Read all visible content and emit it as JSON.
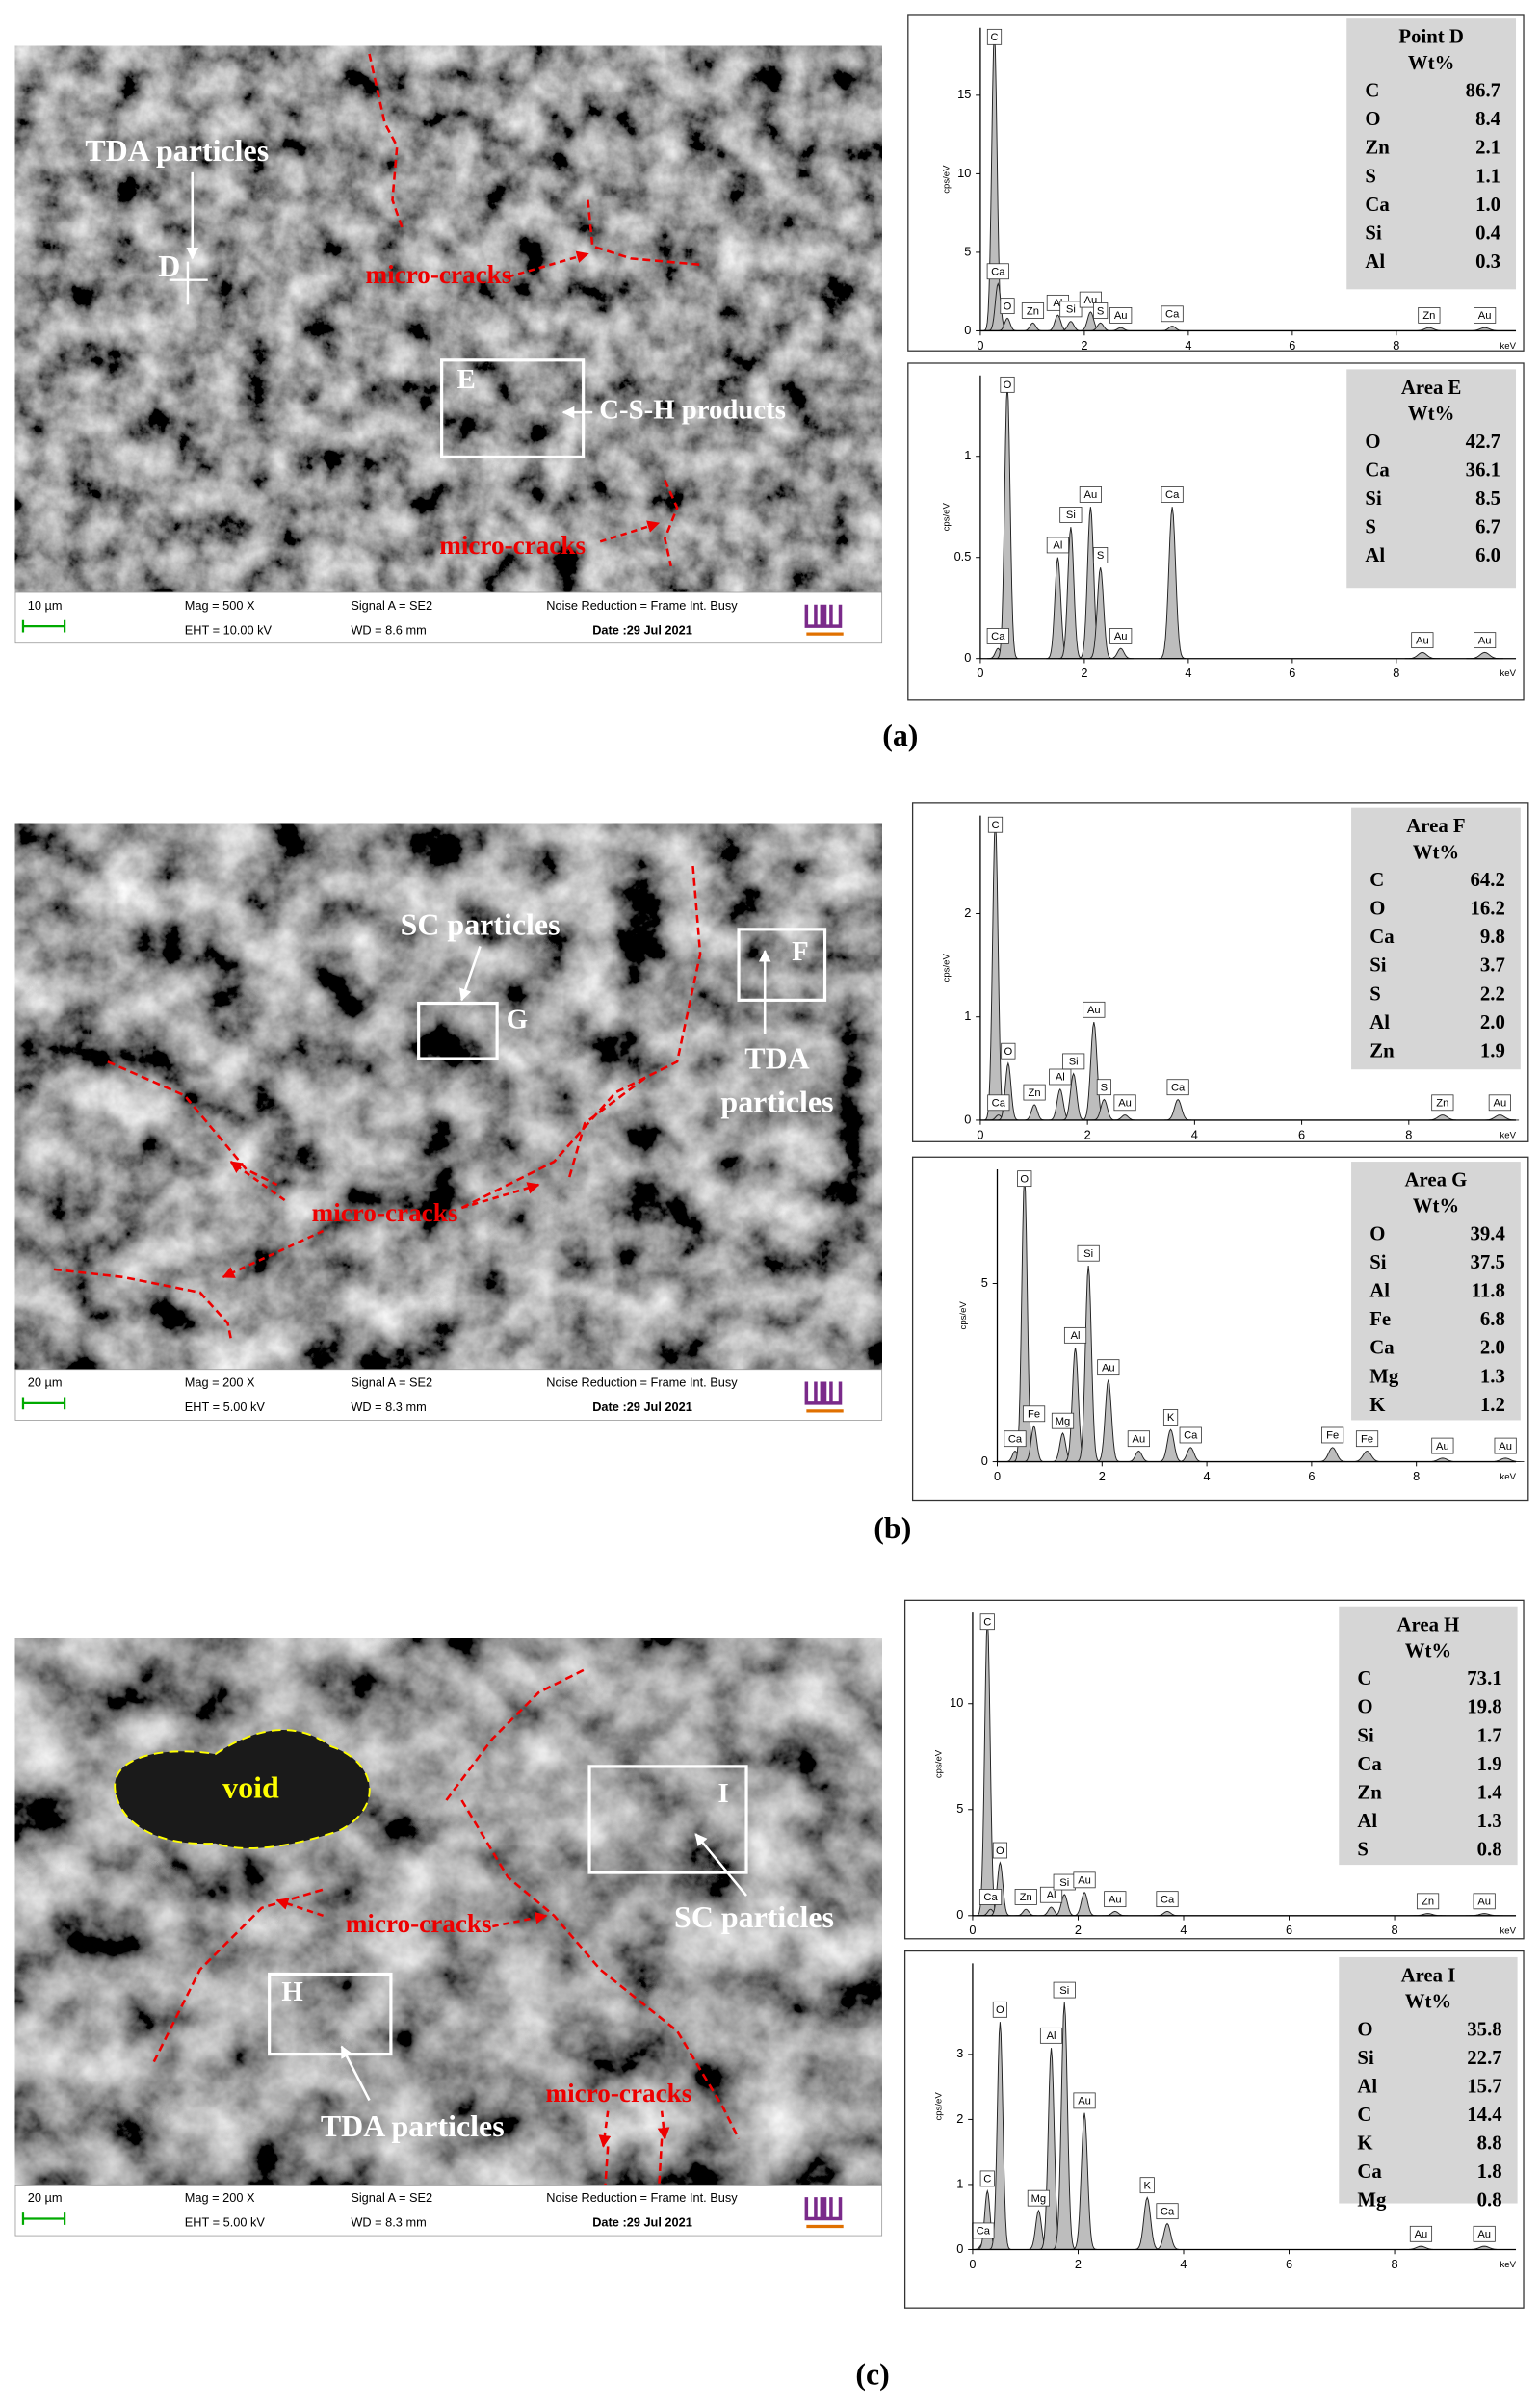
{
  "panels": [
    {
      "caption": "(a)",
      "sem": {
        "labels": [
          "TDA particles",
          "D",
          "micro-cracks",
          "E",
          "C-S-H products",
          "micro-cracks"
        ],
        "info": {
          "scale": "10 µm",
          "mag": "Mag =    500 X",
          "eht": "EHT = 10.00 kV",
          "signal": "Signal A = SE2",
          "wd": "WD = 8.6 mm",
          "noise": "Noise Reduction = Frame Int. Busy",
          "date": "Date :29 Jul 2021"
        }
      },
      "spectra": [
        {
          "table_title": "Point D",
          "table_unit": "Wt%",
          "rows": [
            [
              "C",
              "86.7"
            ],
            [
              "O",
              "8.4"
            ],
            [
              "Zn",
              "2.1"
            ],
            [
              "S",
              "1.1"
            ],
            [
              "Ca",
              "1.0"
            ],
            [
              "Si",
              "0.4"
            ],
            [
              "Al",
              "0.3"
            ]
          ],
          "y_axis_label": "cps/eV",
          "x_unit": "keV",
          "xlim": [
            0,
            10.3
          ],
          "ylim": [
            0,
            19.3
          ],
          "xticks": [
            0,
            2,
            4,
            6,
            8
          ],
          "yticks": [
            0,
            5,
            10,
            15
          ],
          "peaks": [
            {
              "label": "C",
              "kev": 0.27,
              "height": 19
            },
            {
              "label": "Ca",
              "kev": 0.34,
              "height": 3
            },
            {
              "label": "O",
              "kev": 0.52,
              "height": 0.8
            },
            {
              "label": "Zn",
              "kev": 1.01,
              "height": 0.5
            },
            {
              "label": "Al",
              "kev": 1.49,
              "height": 1
            },
            {
              "label": "Si",
              "kev": 1.74,
              "height": 0.6
            },
            {
              "label": "Au",
              "kev": 2.12,
              "height": 1.2
            },
            {
              "label": "S",
              "kev": 2.31,
              "height": 0.5
            },
            {
              "label": "Au",
              "kev": 2.7,
              "height": 0.2
            },
            {
              "label": "Ca",
              "kev": 3.69,
              "height": 0.3
            },
            {
              "label": "Zn",
              "kev": 8.63,
              "height": 0.2
            },
            {
              "label": "Au",
              "kev": 9.7,
              "height": 0.2
            }
          ]
        },
        {
          "table_title": "Area E",
          "table_unit": "Wt%",
          "rows": [
            [
              "O",
              "42.7"
            ],
            [
              "Ca",
              "36.1"
            ],
            [
              "Si",
              "8.5"
            ],
            [
              "S",
              "6.7"
            ],
            [
              "Al",
              "6.0"
            ]
          ],
          "y_axis_label": "cps/eV",
          "x_unit": "keV",
          "xlim": [
            0,
            10.3
          ],
          "ylim": [
            0,
            1.4
          ],
          "xticks": [
            0,
            2,
            4,
            6,
            8
          ],
          "yticks": [
            0,
            0.5,
            1
          ],
          "peaks": [
            {
              "label": "Ca",
              "kev": 0.34,
              "height": 0.05
            },
            {
              "label": "O",
              "kev": 0.52,
              "height": 1.35
            },
            {
              "label": "Al",
              "kev": 1.49,
              "height": 0.5
            },
            {
              "label": "Si",
              "kev": 1.74,
              "height": 0.65
            },
            {
              "label": "Au",
              "kev": 2.12,
              "height": 0.75
            },
            {
              "label": "S",
              "kev": 2.31,
              "height": 0.45
            },
            {
              "label": "Au",
              "kev": 2.7,
              "height": 0.05
            },
            {
              "label": "Ca",
              "kev": 3.69,
              "height": 0.75
            },
            {
              "label": "Au",
              "kev": 8.5,
              "height": 0.03
            },
            {
              "label": "Au",
              "kev": 9.7,
              "height": 0.03
            }
          ]
        }
      ]
    },
    {
      "caption": "(b)",
      "sem": {
        "labels": [
          "SC particles",
          "G",
          "F",
          "TDA",
          "particles",
          "micro-cracks"
        ],
        "info": {
          "scale": "20 µm",
          "mag": "Mag =    200 X",
          "eht": "EHT = 5.00 kV",
          "signal": "Signal A = SE2",
          "wd": "WD = 8.3 mm",
          "noise": "Noise Reduction = Frame Int. Busy",
          "date": "Date :29 Jul 2021"
        }
      },
      "spectra": [
        {
          "table_title": "Area F",
          "table_unit": "Wt%",
          "rows": [
            [
              "C",
              "64.2"
            ],
            [
              "O",
              "16.2"
            ],
            [
              "Ca",
              "9.8"
            ],
            [
              "Si",
              "3.7"
            ],
            [
              "S",
              "2.2"
            ],
            [
              "Al",
              "2.0"
            ],
            [
              "Zn",
              "1.9"
            ]
          ],
          "y_axis_label": "cps/eV",
          "x_unit": "keV",
          "xlim": [
            0,
            10
          ],
          "ylim": [
            0,
            2.95
          ],
          "xticks": [
            0,
            2,
            4,
            6,
            8
          ],
          "yticks": [
            0,
            1,
            2
          ],
          "peaks": [
            {
              "label": "C",
              "kev": 0.28,
              "height": 2.9
            },
            {
              "label": "Ca",
              "kev": 0.34,
              "height": 0.05
            },
            {
              "label": "O",
              "kev": 0.52,
              "height": 0.55
            },
            {
              "label": "Zn",
              "kev": 1.01,
              "height": 0.15
            },
            {
              "label": "Al",
              "kev": 1.49,
              "height": 0.3
            },
            {
              "label": "Si",
              "kev": 1.74,
              "height": 0.45
            },
            {
              "label": "Au",
              "kev": 2.12,
              "height": 0.95
            },
            {
              "label": "S",
              "kev": 2.31,
              "height": 0.2
            },
            {
              "label": "Au",
              "kev": 2.7,
              "height": 0.05
            },
            {
              "label": "Ca",
              "kev": 3.69,
              "height": 0.2
            },
            {
              "label": "Zn",
              "kev": 8.63,
              "height": 0.05
            },
            {
              "label": "Au",
              "kev": 9.7,
              "height": 0.05
            }
          ]
        },
        {
          "table_title": "Area G",
          "table_unit": "Wt%",
          "rows": [
            [
              "O",
              "39.4"
            ],
            [
              "Si",
              "37.5"
            ],
            [
              "Al",
              "11.8"
            ],
            [
              "Fe",
              "6.8"
            ],
            [
              "Ca",
              "2.0"
            ],
            [
              "Mg",
              "1.3"
            ],
            [
              "K",
              "1.2"
            ]
          ],
          "y_axis_label": "cps/eV",
          "x_unit": "keV",
          "xlim": [
            0,
            9.9
          ],
          "ylim": [
            0,
            8.2
          ],
          "xticks": [
            0,
            2,
            4,
            6,
            8
          ],
          "yticks": [
            0,
            5
          ],
          "peaks": [
            {
              "label": "Ca",
              "kev": 0.34,
              "height": 0.3
            },
            {
              "label": "O",
              "kev": 0.52,
              "height": 8
            },
            {
              "label": "Fe",
              "kev": 0.7,
              "height": 1
            },
            {
              "label": "Mg",
              "kev": 1.25,
              "height": 0.8
            },
            {
              "label": "Al",
              "kev": 1.49,
              "height": 3.2
            },
            {
              "label": "Si",
              "kev": 1.74,
              "height": 5.5
            },
            {
              "label": "Au",
              "kev": 2.12,
              "height": 2.3
            },
            {
              "label": "Au",
              "kev": 2.7,
              "height": 0.3
            },
            {
              "label": "K",
              "kev": 3.31,
              "height": 0.9
            },
            {
              "label": "Ca",
              "kev": 3.69,
              "height": 0.4
            },
            {
              "label": "Fe",
              "kev": 6.4,
              "height": 0.4
            },
            {
              "label": "Fe",
              "kev": 7.06,
              "height": 0.3
            },
            {
              "label": "Au",
              "kev": 8.5,
              "height": 0.1
            },
            {
              "label": "Au",
              "kev": 9.7,
              "height": 0.1
            }
          ]
        }
      ]
    },
    {
      "caption": "(c)",
      "sem": {
        "labels": [
          "void",
          "I",
          "SC particles",
          "micro-cracks",
          "H",
          "TDA particles",
          "micro-cracks"
        ],
        "info": {
          "scale": "20 µm",
          "mag": "Mag =    200 X",
          "eht": "EHT = 5.00 kV",
          "signal": "Signal A = SE2",
          "wd": "WD = 8.3 mm",
          "noise": "Noise Reduction = Frame Int. Busy",
          "date": "Date :29 Jul 2021"
        }
      },
      "spectra": [
        {
          "table_title": "Area H",
          "table_unit": "Wt%",
          "rows": [
            [
              "C",
              "73.1"
            ],
            [
              "O",
              "19.8"
            ],
            [
              "Si",
              "1.7"
            ],
            [
              "Ca",
              "1.9"
            ],
            [
              "Zn",
              "1.4"
            ],
            [
              "Al",
              "1.3"
            ],
            [
              "S",
              "0.8"
            ]
          ],
          "y_axis_label": "cps/eV",
          "x_unit": "keV",
          "xlim": [
            0,
            10.3
          ],
          "ylim": [
            0,
            14.3
          ],
          "xticks": [
            0,
            2,
            4,
            6,
            8
          ],
          "yticks": [
            0,
            5,
            10
          ],
          "peaks": [
            {
              "label": "C",
              "kev": 0.28,
              "height": 14
            },
            {
              "label": "Ca",
              "kev": 0.34,
              "height": 0.3
            },
            {
              "label": "O",
              "kev": 0.52,
              "height": 2.5
            },
            {
              "label": "Zn",
              "kev": 1.01,
              "height": 0.3
            },
            {
              "label": "Al",
              "kev": 1.49,
              "height": 0.4
            },
            {
              "label": "Si",
              "kev": 1.74,
              "height": 1
            },
            {
              "label": "Au",
              "kev": 2.12,
              "height": 1.1
            },
            {
              "label": "Au",
              "kev": 2.7,
              "height": 0.2
            },
            {
              "label": "Ca",
              "kev": 3.69,
              "height": 0.2
            },
            {
              "label": "Zn",
              "kev": 8.63,
              "height": 0.1
            },
            {
              "label": "Au",
              "kev": 9.7,
              "height": 0.1
            }
          ]
        },
        {
          "table_title": "Area I",
          "table_unit": "Wt%",
          "rows": [
            [
              "O",
              "35.8"
            ],
            [
              "Si",
              "22.7"
            ],
            [
              "Al",
              "15.7"
            ],
            [
              "C",
              "14.4"
            ],
            [
              "K",
              "8.8"
            ],
            [
              "Ca",
              "1.8"
            ],
            [
              "Mg",
              "0.8"
            ]
          ],
          "y_axis_label": "cps/eV",
          "x_unit": "keV",
          "xlim": [
            0,
            10.3
          ],
          "ylim": [
            0,
            4.4
          ],
          "xticks": [
            0,
            2,
            4,
            6,
            8
          ],
          "yticks": [
            0,
            1,
            2,
            3
          ],
          "peaks": [
            {
              "label": "Ca",
              "kev": 0.2,
              "height": 0.1
            },
            {
              "label": "C",
              "kev": 0.28,
              "height": 0.9
            },
            {
              "label": "O",
              "kev": 0.52,
              "height": 3.5
            },
            {
              "label": "Mg",
              "kev": 1.25,
              "height": 0.6
            },
            {
              "label": "Al",
              "kev": 1.49,
              "height": 3.1
            },
            {
              "label": "Si",
              "kev": 1.74,
              "height": 3.8
            },
            {
              "label": "Au",
              "kev": 2.12,
              "height": 2.1
            },
            {
              "label": "K",
              "kev": 3.31,
              "height": 0.8
            },
            {
              "label": "Ca",
              "kev": 3.69,
              "height": 0.4
            },
            {
              "label": "Au",
              "kev": 8.5,
              "height": 0.05
            },
            {
              "label": "Au",
              "kev": 9.7,
              "height": 0.05
            }
          ]
        }
      ]
    }
  ]
}
